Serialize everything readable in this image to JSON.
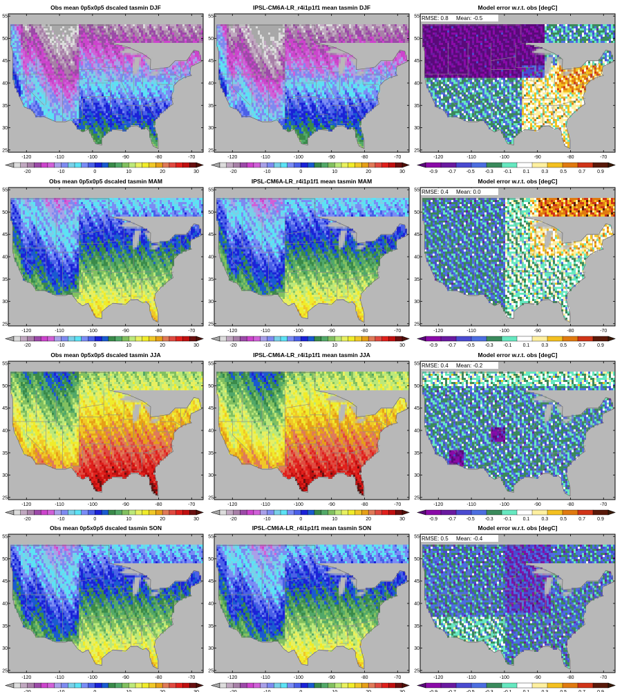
{
  "seasons": [
    "DJF",
    "MAM",
    "JJA",
    "SON"
  ],
  "columns": [
    {
      "title_prefix": "Obs mean 0p5x0p5 dscaled tasmin",
      "kind": "obs"
    },
    {
      "title_prefix": "IPSL-CM6A-LR_r4i1p1f1 mean tasmin",
      "kind": "model"
    },
    {
      "title": "Model error w.r.t. obs [degC]",
      "kind": "error"
    }
  ],
  "stats": [
    {
      "season": "DJF",
      "rmse_label": "RMSE: 0.8",
      "mean_label": "Mean: -0.5"
    },
    {
      "season": "MAM",
      "rmse_label": "RMSE: 0.4",
      "mean_label": "Mean: 0.0"
    },
    {
      "season": "JJA",
      "rmse_label": "RMSE: 0.4",
      "mean_label": "Mean: -0.2"
    },
    {
      "season": "SON",
      "rmse_label": "RMSE: 0.5",
      "mean_label": "Mean: -0.4"
    }
  ],
  "axes": {
    "lon_ticks": [
      -120,
      -110,
      -100,
      -90,
      -80,
      -70
    ],
    "lon_tick_labels": [
      "-120",
      "-110",
      "-100",
      "-90",
      "-80",
      "-70"
    ],
    "lat_ticks": [
      25,
      30,
      35,
      40,
      45,
      50,
      55
    ],
    "lat_tick_labels": [
      "25",
      "30",
      "35",
      "40",
      "45",
      "50",
      "55"
    ],
    "lon_range": [
      -125.5,
      -66.5
    ],
    "lat_range": [
      24.5,
      55.5
    ],
    "data_lat_max": 53
  },
  "temp_colorbar": {
    "tick_labels": [
      "-20",
      "-10",
      "0",
      "10",
      "20",
      "30"
    ],
    "colors": [
      "#dcdcdc",
      "#c0a8c0",
      "#a880a8",
      "#9c4aa8",
      "#cc44cc",
      "#d060d8",
      "#a8a0e8",
      "#7e8af0",
      "#7ad0e8",
      "#5ce2f5",
      "#7a8cf5",
      "#4a60e8",
      "#1a22d8",
      "#1a5ad0",
      "#3a8a4a",
      "#52a868",
      "#82c060",
      "#bce87a",
      "#e8f060",
      "#f0ec2a",
      "#f0c828",
      "#e6a018",
      "#e07a58",
      "#e04a40",
      "#e0201c",
      "#c01010",
      "#6a1010"
    ],
    "under_color": "#a8a8a8",
    "over_color": "#501008"
  },
  "error_colorbar": {
    "tick_labels": [
      "-0.9",
      "-0.7",
      "-0.5",
      "-0.3",
      "-0.1",
      "0.1",
      "0.3",
      "0.5",
      "0.7",
      "0.9"
    ],
    "colors": [
      "#8a0aa8",
      "#6a1aa0",
      "#4a4ad0",
      "#4c6ee0",
      "#3a8a5c",
      "#66e8c0",
      "#ffffff",
      "#fff0a0",
      "#f4c020",
      "#e07a10",
      "#d03418",
      "#5a1a0a"
    ],
    "under_color": "#5a0a7a",
    "over_color": "#3a1a08"
  },
  "palette": {
    "ocean": "#b8b8b8",
    "frame": "#000000",
    "border_line": "#8a8a8a"
  }
}
